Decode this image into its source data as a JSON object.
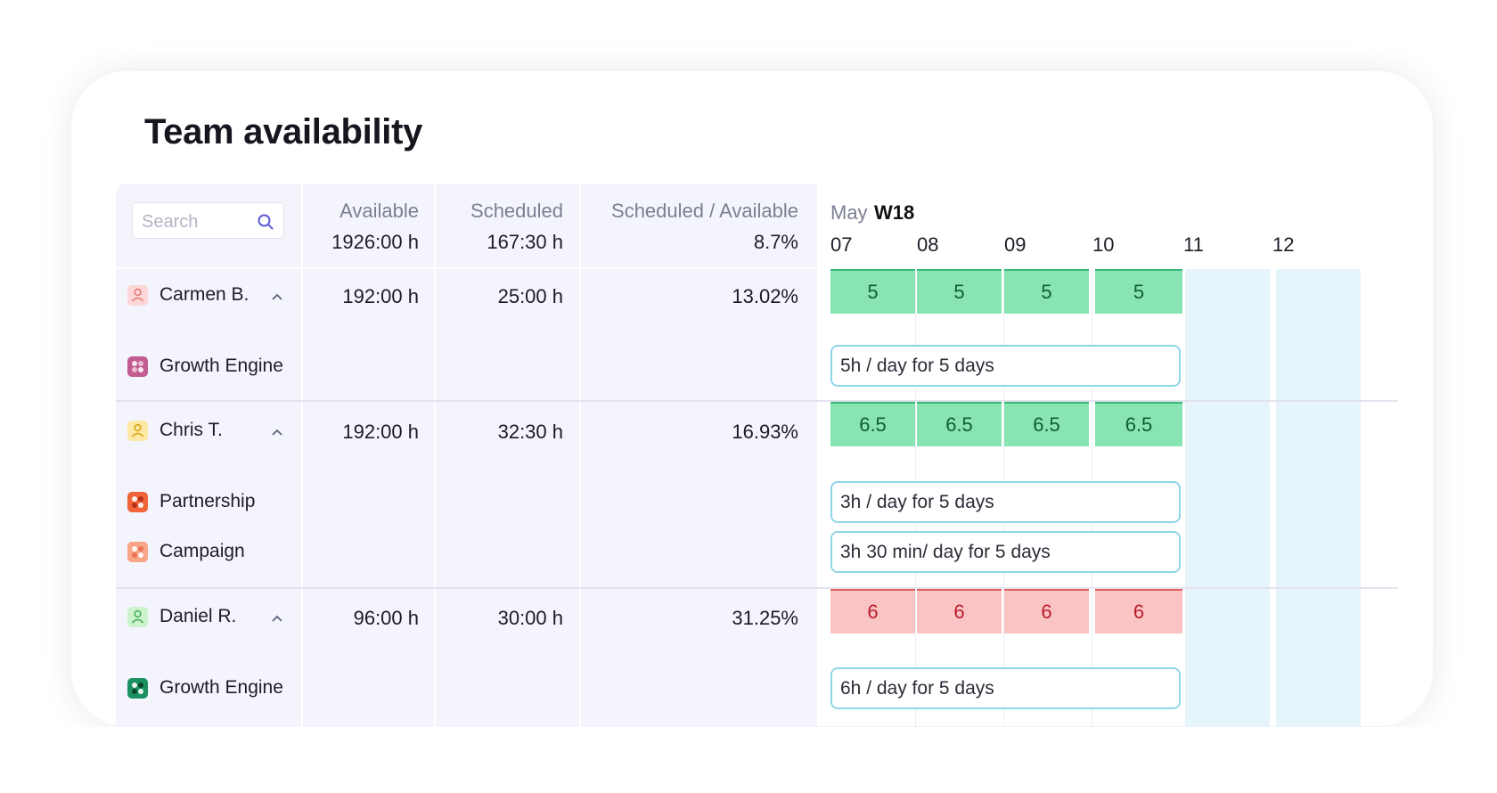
{
  "title": "Team availability",
  "search": {
    "placeholder": "Search"
  },
  "columns": {
    "available": {
      "label": "Available",
      "total": "1926:00 h"
    },
    "scheduled": {
      "label": "Scheduled",
      "total": "167:30 h"
    },
    "ratio": {
      "label": "Scheduled / Available",
      "total": "8.7%"
    }
  },
  "calendar": {
    "month": "May",
    "week": "W18",
    "days": [
      "07",
      "08",
      "09",
      "10",
      "11",
      "12"
    ]
  },
  "members": [
    {
      "name": "Carmen B.",
      "available": "192:00 h",
      "scheduled": "25:00 h",
      "ratio": "13.02%",
      "avatar_color": "#fcd7d7",
      "status": "green",
      "daily_hours": [
        "5",
        "5",
        "5",
        "5"
      ],
      "projects": [
        {
          "name": "Growth Engine",
          "color": "#c25b8f",
          "allocation": "5h / day for 5 days"
        }
      ]
    },
    {
      "name": "Chris T.",
      "available": "192:00 h",
      "scheduled": "32:30 h",
      "ratio": "16.93%",
      "avatar_color": "#fde8a6",
      "status": "green",
      "daily_hours": [
        "6.5",
        "6.5",
        "6.5",
        "6.5"
      ],
      "projects": [
        {
          "name": "Partnership",
          "color": "#f0643a",
          "allocation": "3h / day for 5 days"
        },
        {
          "name": "Campaign",
          "color": "#f8a487",
          "allocation": "3h 30 min/ day for 5 days"
        }
      ]
    },
    {
      "name": "Daniel R.",
      "available": "96:00 h",
      "scheduled": "30:00 h",
      "ratio": "31.25%",
      "avatar_color": "#cdf3cd",
      "status": "red",
      "daily_hours": [
        "6",
        "6",
        "6",
        "6"
      ],
      "projects": [
        {
          "name": "Growth Engine",
          "color": "#1a9160",
          "allocation": "6h / day for 5 days"
        }
      ]
    }
  ],
  "colors": {
    "accent": "#5b5bd6",
    "ok_fill": "#88e4b3",
    "over_fill": "#fbc4c4",
    "weekend": "#e6f5fb",
    "pill_border": "#8fd6ea"
  },
  "icons": {
    "search": "search-icon",
    "avatar": "user-icon",
    "collapse": "chevron-up-icon",
    "project": "project-icon"
  }
}
